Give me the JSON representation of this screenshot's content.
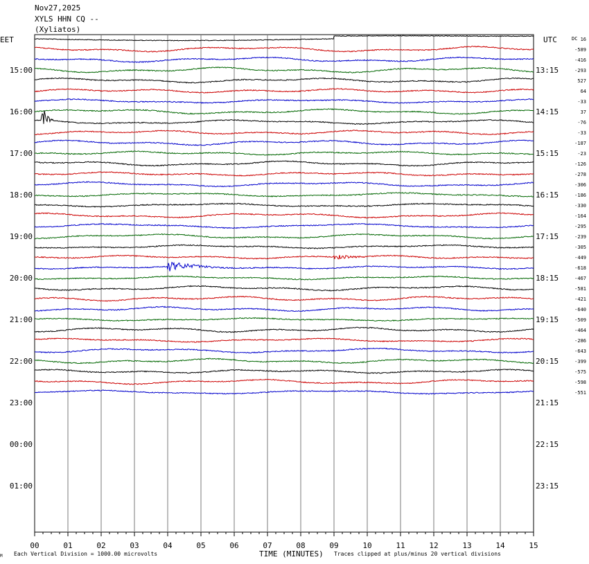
{
  "header": {
    "date": "Nov27,2025",
    "station": "XYLS HHN CQ --",
    "site": "(Xyliatos)"
  },
  "left_axis_label": "EET",
  "right_axis_label": "UTC",
  "dc_label": "DC",
  "footer": {
    "x_axis_title": "TIME (MINUTES)",
    "scale_note": "Each Vertical Division = 1000.00 microvolts",
    "clip_note": "Traces clipped at plus/minus 20 vertical divisions",
    "corner_mark": "M"
  },
  "chart_data": {
    "type": "line",
    "title": "",
    "xlabel": "TIME (MINUTES)",
    "xlim": [
      0,
      15
    ],
    "x_ticks": [
      "00",
      "01",
      "02",
      "03",
      "04",
      "05",
      "06",
      "07",
      "08",
      "09",
      "10",
      "11",
      "12",
      "13",
      "14",
      "15"
    ],
    "eet_labels": [
      "15:00",
      "16:00",
      "17:00",
      "18:00",
      "19:00",
      "20:00",
      "21:00",
      "22:00",
      "23:00",
      "00:00",
      "01:00"
    ],
    "utc_labels": [
      "13:15",
      "14:15",
      "15:15",
      "16:15",
      "17:15",
      "18:15",
      "19:15",
      "20:15",
      "21:15",
      "22:15",
      "23:15"
    ],
    "top_left_label": "EET",
    "top_right_label": "UTC",
    "trace_colors": [
      "#000000",
      "#cc0000",
      "#0000cc",
      "#006600"
    ],
    "dc_offsets": [
      16,
      -589,
      -416,
      -293,
      527,
      64,
      -33,
      37,
      -76,
      -33,
      -187,
      -23,
      -126,
      -278,
      -306,
      -186,
      -330,
      -164,
      -295,
      -239,
      -305,
      -449,
      -618,
      -467,
      -581,
      -421,
      -640,
      -509,
      -464,
      -286,
      -643,
      -399,
      -575,
      -598,
      -551
    ],
    "events": [
      {
        "trace": 8,
        "minute_start": 0.2,
        "minute_end": 0.6,
        "amplitude": 2.0
      },
      {
        "trace": 21,
        "minute_start": 9.0,
        "minute_end": 10.2,
        "amplitude": 0.35
      },
      {
        "trace": 22,
        "minute_start": 4.0,
        "minute_end": 6.0,
        "amplitude": 0.55
      }
    ]
  }
}
